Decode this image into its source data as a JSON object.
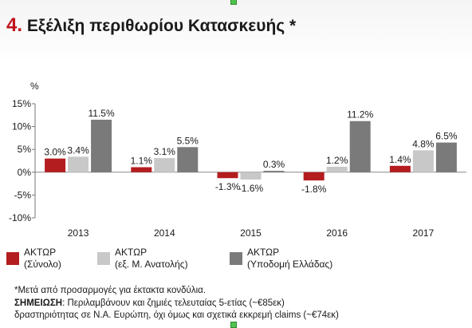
{
  "title": {
    "number": "4.",
    "text": "Εξέλιξη περιθωρίου Κατασκευής *"
  },
  "chart_data": {
    "type": "bar",
    "title": "Εξέλιξη περιθωρίου Κατασκευής *",
    "unit_label": "%",
    "categories": [
      "2013",
      "2014",
      "2015",
      "2016",
      "2017"
    ],
    "ylim": [
      -10,
      15
    ],
    "yticks": [
      15,
      10,
      5,
      0,
      -5,
      -10
    ],
    "ytick_labels": [
      "15%",
      "10%",
      "5%",
      "0%",
      "-5%",
      "-10%"
    ],
    "grid": false,
    "legend_position": "bottom",
    "series": [
      {
        "name": "ΑΚΤΩΡ (Σύνολο)",
        "color": "#b41d1f",
        "values": [
          3.0,
          1.1,
          -1.3,
          -1.8,
          1.4
        ],
        "labels": [
          "3.0%",
          "1.1%",
          "-1.3%",
          "-1.8%",
          "1.4%"
        ]
      },
      {
        "name": "ΑΚΤΩΡ (εξ. Μ. Ανατολής)",
        "color": "#c8c8c8",
        "values": [
          3.4,
          3.1,
          -1.6,
          1.2,
          4.8
        ],
        "labels": [
          "3.4%",
          "3.1%",
          "-1.6%",
          "1.2%",
          "4.8%"
        ]
      },
      {
        "name": "ΑΚΤΩΡ (Υποδομή Ελλάδας)",
        "color": "#7a7a7a",
        "values": [
          11.5,
          5.5,
          0.3,
          11.2,
          6.5
        ],
        "labels": [
          "11.5%",
          "5.5%",
          "0.3%",
          "11.2%",
          "6.5%"
        ]
      }
    ]
  },
  "legend": [
    {
      "line1": "ΑΚΤΩΡ",
      "line2": "(Σύνολο)",
      "color": "#b41d1f"
    },
    {
      "line1": "ΑΚΤΩΡ",
      "line2": "(εξ. Μ. Ανατολής)",
      "color": "#c8c8c8"
    },
    {
      "line1": "ΑΚΤΩΡ",
      "line2": "(Υποδομή Ελλάδας)",
      "color": "#7a7a7a"
    }
  ],
  "footnote": {
    "line1": "*Μετά από προσαρμογές για έκτακτα κονδύλια.",
    "note_label": "ΣΗΜΕΙΩΣΗ",
    "note_text": ": Περιλαμβάνουν και ζημιές τελευταίας 5-ετίας (~€85εκ)",
    "line3": "δραστηριότητας σε Ν.Α. Ευρώπη, όχι όμως και σχετικά εκκρεμή claims (~€74εκ)"
  }
}
